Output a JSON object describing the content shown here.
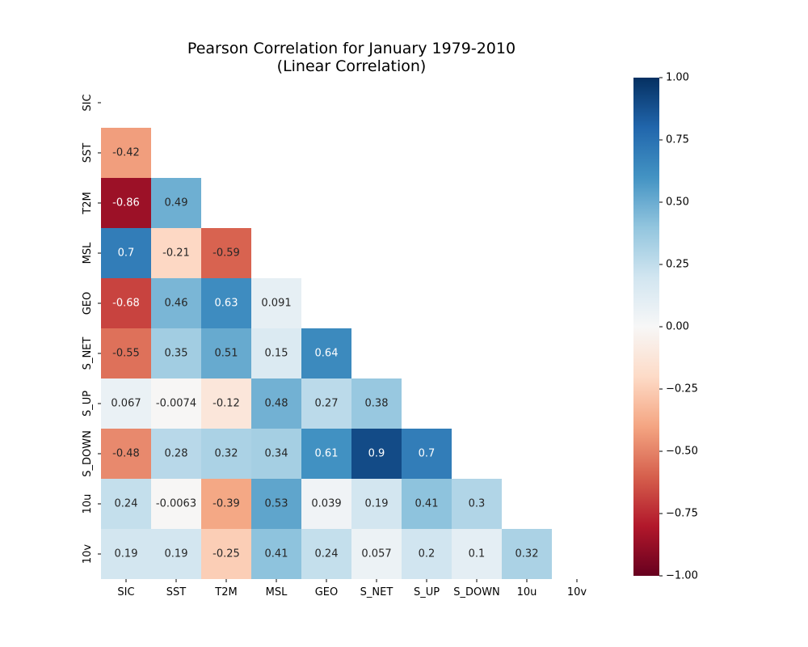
{
  "chart_data": {
    "type": "heatmap",
    "title": [
      "Pearson Correlation for January 1979-2010",
      "(Linear Correlation)"
    ],
    "xlabel": "",
    "ylabel": "",
    "variables": [
      "SIC",
      "SST",
      "T2M",
      "MSL",
      "GEO",
      "S_NET",
      "S_UP",
      "S_DOWN",
      "10u",
      "10v"
    ],
    "mask": "upper-triangle-including-diagonal",
    "values": [
      [
        null,
        null,
        null,
        null,
        null,
        null,
        null,
        null,
        null,
        null
      ],
      [
        -0.42,
        null,
        null,
        null,
        null,
        null,
        null,
        null,
        null,
        null
      ],
      [
        -0.86,
        0.49,
        null,
        null,
        null,
        null,
        null,
        null,
        null,
        null
      ],
      [
        0.7,
        -0.21,
        -0.59,
        null,
        null,
        null,
        null,
        null,
        null,
        null
      ],
      [
        -0.68,
        0.46,
        0.63,
        0.091,
        null,
        null,
        null,
        null,
        null,
        null
      ],
      [
        -0.55,
        0.35,
        0.51,
        0.15,
        0.64,
        null,
        null,
        null,
        null,
        null
      ],
      [
        0.067,
        -0.0074,
        -0.12,
        0.48,
        0.27,
        0.38,
        null,
        null,
        null,
        null
      ],
      [
        -0.48,
        0.28,
        0.32,
        0.34,
        0.61,
        0.9,
        0.7,
        null,
        null,
        null
      ],
      [
        0.24,
        -0.0063,
        -0.39,
        0.53,
        0.039,
        0.19,
        0.41,
        0.3,
        null,
        null
      ],
      [
        0.19,
        0.19,
        -0.25,
        0.41,
        0.24,
        0.057,
        0.2,
        0.1,
        0.32,
        null
      ]
    ],
    "colorbar": {
      "colormap": "RdBu",
      "range": [
        -1.0,
        1.0
      ],
      "ticks": [
        1.0,
        0.75,
        0.5,
        0.25,
        0.0,
        -0.25,
        -0.5,
        -0.75,
        -1.0
      ],
      "tick_labels": [
        "1.00",
        "0.75",
        "0.50",
        "0.25",
        "0.00",
        "−0.25",
        "−0.50",
        "−0.75",
        "−1.00"
      ]
    },
    "grid": false,
    "legend": "colorbar-right"
  }
}
